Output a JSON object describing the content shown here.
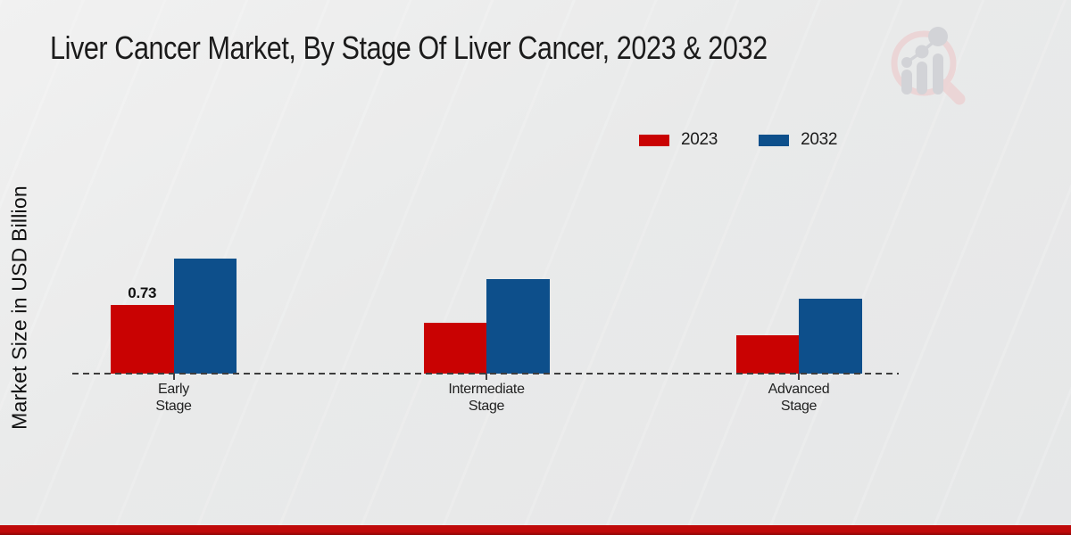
{
  "title": "Liver Cancer Market, By Stage Of Liver Cancer, 2023 & 2032",
  "ylabel": "Market Size in USD Billion",
  "chart_data": {
    "type": "bar",
    "title": "Liver Cancer Market, By Stage Of Liver Cancer, 2023 & 2032",
    "xlabel": "",
    "ylabel": "Market Size in USD Billion",
    "categories": [
      "Early Stage",
      "Intermediate Stage",
      "Advanced Stage"
    ],
    "series": [
      {
        "name": "2023",
        "color": "#C90202",
        "values": [
          0.73,
          0.54,
          0.41
        ],
        "labels": [
          "0.73",
          "",
          ""
        ]
      },
      {
        "name": "2032",
        "color": "#0D4F8B",
        "values": [
          1.23,
          1.01,
          0.8
        ],
        "labels": [
          "",
          "",
          ""
        ]
      }
    ],
    "ylim": [
      0,
      1.4
    ],
    "grid": false,
    "legend_position": "top-right",
    "baseline_style": "dashed",
    "accent_colors": {
      "footer_bar": "#BF0A0A"
    }
  },
  "branding": {
    "logo_name": "magnifier-growth-chart-logo"
  }
}
